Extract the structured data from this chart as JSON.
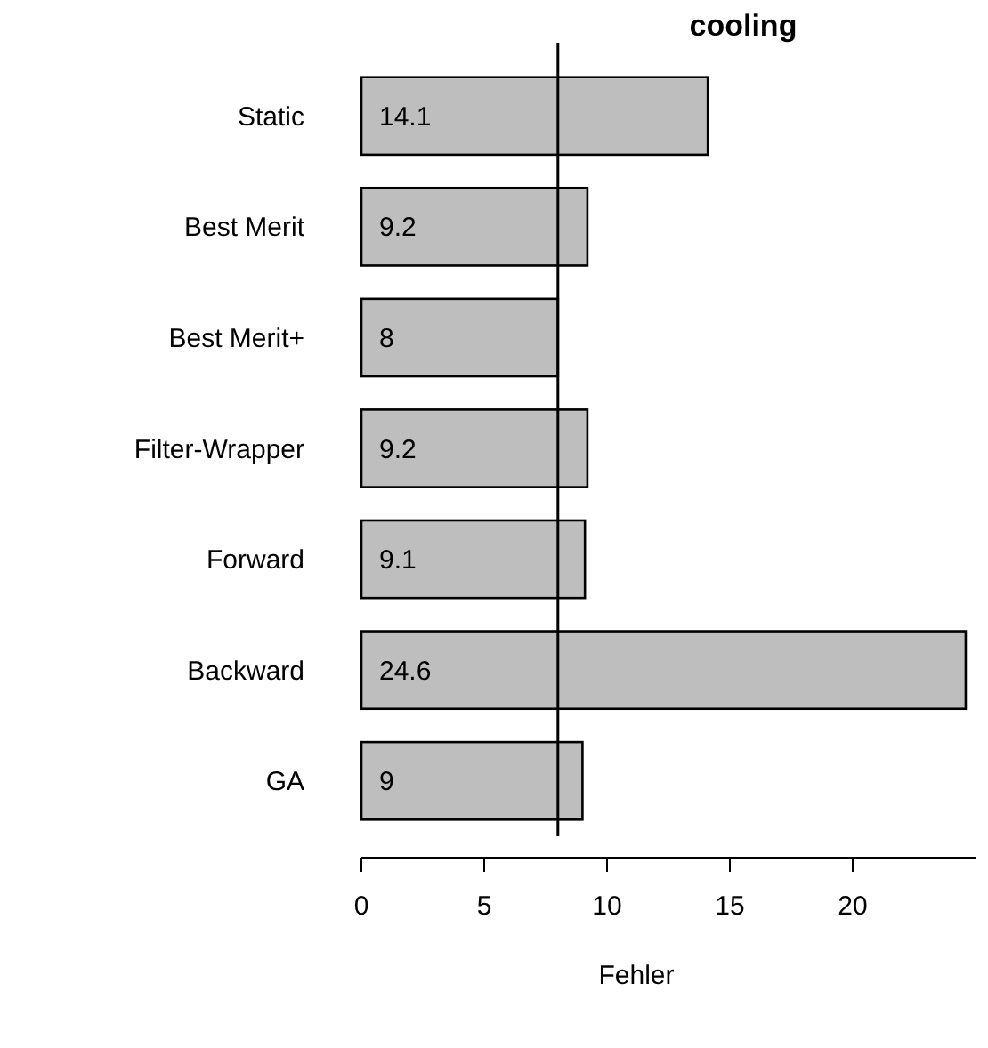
{
  "chart_data": {
    "type": "bar",
    "orientation": "horizontal",
    "title": "cooling",
    "xlabel": "Fehler",
    "categories": [
      "Static",
      "Best Merit",
      "Best Merit+",
      "Filter-Wrapper",
      "Forward",
      "Backward",
      "GA"
    ],
    "values": [
      14.1,
      9.2,
      8,
      9.2,
      9.1,
      24.6,
      9
    ],
    "color": "#bebebe",
    "xlim": [
      0,
      25
    ],
    "xticks": [
      0,
      5,
      10,
      15,
      20
    ],
    "data_labels": true,
    "grid": false,
    "ref_lines": [
      {
        "axis": "x",
        "value": 8
      }
    ]
  }
}
